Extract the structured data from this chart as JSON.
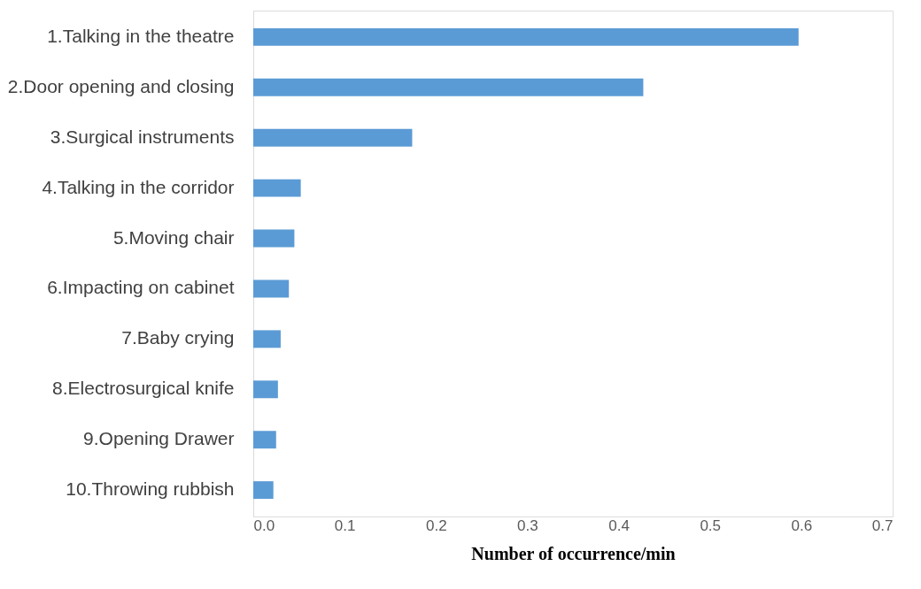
{
  "chart_data": {
    "type": "bar",
    "orientation": "horizontal",
    "xlabel": "Number of occurrence/min",
    "categories": [
      "1.Talking in the theatre",
      "2.Door opening and closing",
      "3.Surgical instruments",
      "4.Talking in the corridor",
      "5.Moving chair",
      "6.Impacting on cabinet",
      "7.Baby crying",
      "8.Electrosurgical knife",
      "9.Opening Drawer",
      "10.Throwing rubbish"
    ],
    "values": [
      0.597,
      0.427,
      0.174,
      0.052,
      0.045,
      0.039,
      0.03,
      0.027,
      0.025,
      0.022
    ],
    "color": "#5b9bd5",
    "xlim": [
      0,
      0.7
    ],
    "xticks": [
      {
        "value": 0,
        "label": "0.0"
      },
      {
        "value": 0.1,
        "label": "0.1"
      },
      {
        "value": 0.2,
        "label": "0.2"
      },
      {
        "value": 0.3,
        "label": "0.3"
      },
      {
        "value": 0.4,
        "label": "0.4"
      },
      {
        "value": 0.5,
        "label": "0.5"
      },
      {
        "value": 0.6,
        "label": "0.6"
      },
      {
        "value": 0.7,
        "label": "0.7"
      }
    ],
    "grid": false
  }
}
